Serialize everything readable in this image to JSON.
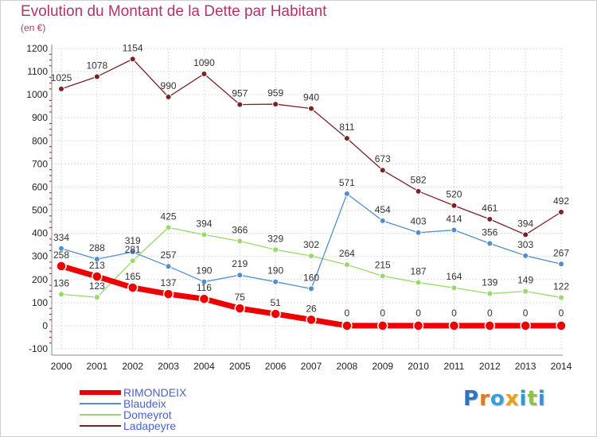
{
  "title": "Evolution du Montant de la Dette par Habitant",
  "subtitle": "(en €)",
  "logo": {
    "text": "Proxiti",
    "letters": [
      "P",
      "r",
      "o",
      "x",
      "i",
      "t",
      "i"
    ],
    "colors": [
      "#2e73c2",
      "#e07b1f",
      "#3aa0d8",
      "#e5a21a",
      "#2e9ad6",
      "#8fc23f",
      "#3c8fd0"
    ]
  },
  "chart_data": {
    "type": "line",
    "x": [
      "2000",
      "2001",
      "2002",
      "2003",
      "2004",
      "2005",
      "2006",
      "2007",
      "2008",
      "2009",
      "2010",
      "2011",
      "2012",
      "2013",
      "2014"
    ],
    "ylim": [
      -100,
      1200
    ],
    "yticks": [
      "-100",
      "0",
      "100",
      "200",
      "300",
      "400",
      "500",
      "600",
      "700",
      "800",
      "900",
      "1000",
      "1100",
      "1200"
    ],
    "grid": true,
    "legend_position": "bottom-left",
    "series": [
      {
        "name": "RIMONDEIX",
        "color": "#ee0000",
        "values": [
          258,
          213,
          165,
          137,
          116,
          75,
          51,
          26,
          0,
          0,
          0,
          0,
          0,
          0,
          0
        ],
        "labels": [
          "258",
          "213",
          "165",
          "137",
          "116",
          "75",
          "51",
          "26",
          "0",
          "0",
          "0",
          "0",
          "0",
          "0",
          "0"
        ]
      },
      {
        "name": "Blaudeix",
        "color": "#4f8fcc",
        "values": [
          334,
          288,
          319,
          257,
          190,
          219,
          190,
          160,
          571,
          454,
          403,
          414,
          356,
          303,
          267
        ],
        "labels": [
          "334",
          "288",
          "319",
          "257",
          "190",
          "219",
          "190",
          "160",
          "571",
          "454",
          "403",
          "414",
          "356",
          "303",
          "267"
        ]
      },
      {
        "name": "Domeyrot",
        "color": "#99d86a",
        "values": [
          136,
          123,
          281,
          425,
          394,
          366,
          329,
          302,
          264,
          215,
          187,
          164,
          139,
          149,
          122
        ],
        "labels": [
          "136",
          "123",
          "281",
          "425",
          "394",
          "366",
          "329",
          "302",
          "264",
          "215",
          "187",
          "164",
          "139",
          "149",
          "122"
        ]
      },
      {
        "name": "Ladapeyre",
        "color": "#7a2226",
        "values": [
          1025,
          1078,
          1154,
          990,
          1090,
          957,
          959,
          940,
          811,
          673,
          582,
          520,
          461,
          394,
          492
        ],
        "labels": [
          "1025",
          "1078",
          "1154",
          "990",
          "1090",
          "957",
          "959",
          "940",
          "811",
          "673",
          "582",
          "520",
          "461",
          "394",
          "492"
        ]
      }
    ]
  }
}
